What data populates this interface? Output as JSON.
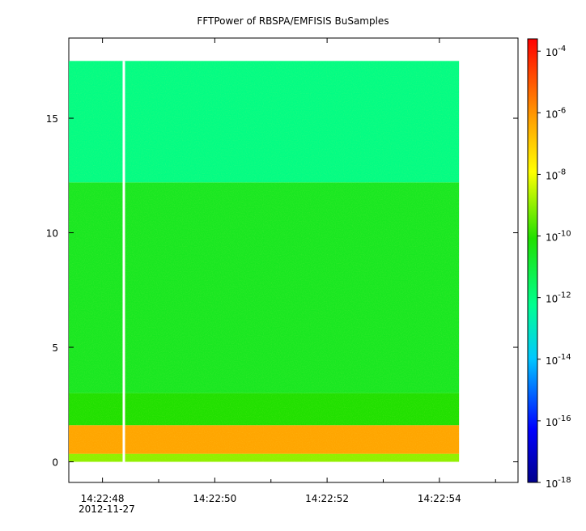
{
  "chart_data": {
    "type": "heatmap",
    "title": "FFTPower of RBSPA/EMFISIS  BuSamples",
    "xlabel": "",
    "ylabel": "",
    "x_tick_labels": [
      "14:22:48",
      "14:22:50",
      "14:22:52",
      "14:22:54"
    ],
    "x_tick_values": [
      48,
      50,
      52,
      54
    ],
    "x_minor_ticks": [
      49,
      51,
      53,
      55
    ],
    "x_range_seconds": [
      47.4,
      55.4
    ],
    "date_label": "2012-11-27",
    "y_tick_labels": [
      "0",
      "5",
      "10",
      "15"
    ],
    "y_tick_values": [
      0,
      5,
      10,
      15
    ],
    "ylim": [
      -0.9,
      18.5
    ],
    "data_extent": {
      "x": [
        47.4,
        54.35
      ],
      "y": [
        0,
        17.5
      ]
    },
    "data_gap_x": 48.38,
    "bands": [
      {
        "y": [
          0,
          0.35
        ],
        "log_power": -9
      },
      {
        "y": [
          0.35,
          1.6
        ],
        "log_power": -6.3
      },
      {
        "y": [
          1.6,
          3.0
        ],
        "log_power": -10
      },
      {
        "y": [
          3.0,
          12.2
        ],
        "log_power": -10.5
      },
      {
        "y": [
          12.2,
          17.5
        ],
        "log_power": -12
      }
    ],
    "colorbar": {
      "scale": "log",
      "range": [
        -18,
        -3.6
      ],
      "tick_values": [
        -4,
        -6,
        -8,
        -10,
        -12,
        -14,
        -16,
        -18
      ],
      "tick_labels": [
        "10",
        "10",
        "10",
        "10",
        "10",
        "10",
        "10",
        "10"
      ],
      "tick_exponents": [
        "-4",
        "-6",
        "-8",
        "-10",
        "-12",
        "-14",
        "-16",
        "-18"
      ]
    }
  }
}
